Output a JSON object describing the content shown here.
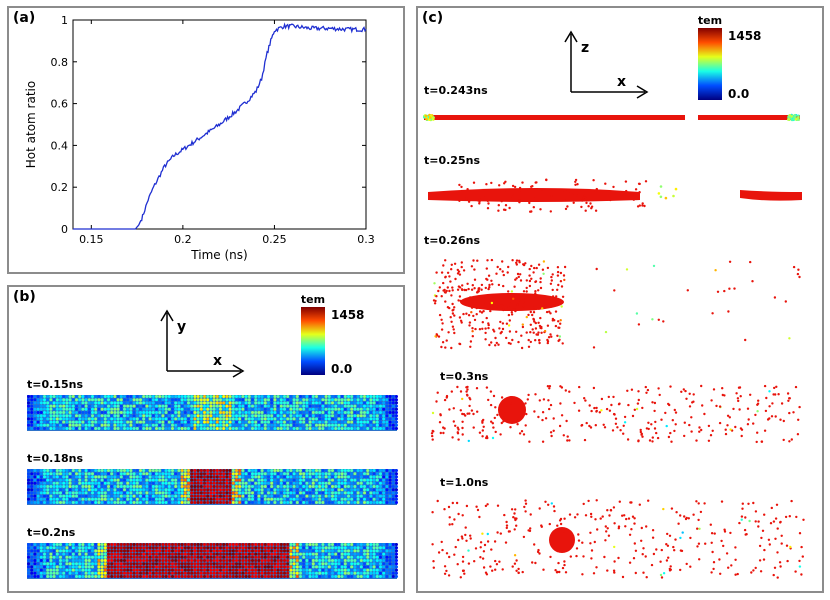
{
  "chart_data": [
    {
      "panel": "(a)",
      "type": "line",
      "xlabel": "Time (ns)",
      "ylabel": "Hot atom ratio",
      "xlim": [
        0.14,
        0.3
      ],
      "ylim": [
        0,
        1
      ],
      "xticks": [
        "0.15",
        "0.2",
        "0.25",
        "0.3"
      ],
      "yticks": [
        "0",
        "0.2",
        "0.4",
        "0.6",
        "0.8",
        "1"
      ],
      "series": [
        {
          "name": "Hot atom ratio",
          "color": "#1f2fd1",
          "x": [
            0.14,
            0.174,
            0.176,
            0.178,
            0.181,
            0.184,
            0.187,
            0.19,
            0.195,
            0.2,
            0.21,
            0.22,
            0.23,
            0.236,
            0.24,
            0.243,
            0.246,
            0.248,
            0.25,
            0.255,
            0.26,
            0.27,
            0.28,
            0.29,
            0.3
          ],
          "y": [
            0.0,
            0.0,
            0.02,
            0.06,
            0.14,
            0.2,
            0.25,
            0.3,
            0.35,
            0.38,
            0.44,
            0.5,
            0.57,
            0.62,
            0.66,
            0.72,
            0.84,
            0.9,
            0.95,
            0.97,
            0.97,
            0.96,
            0.96,
            0.955,
            0.955
          ]
        }
      ]
    },
    {
      "panel": "(b)",
      "type": "heatmap",
      "axes": {
        "vertical": "y",
        "horizontal": "x"
      },
      "colorbar": {
        "title": "tem",
        "max": "1458",
        "min": "0.0"
      },
      "snapshots": [
        {
          "time": "t=0.15ns",
          "hot_region": [
            0.45,
            0.55
          ],
          "hot_level": 0.45
        },
        {
          "time": "t=0.18ns",
          "hot_region": [
            0.44,
            0.55
          ],
          "hot_level": 1.0
        },
        {
          "time": "t=0.2ns",
          "hot_region": [
            0.22,
            0.71
          ],
          "hot_level": 1.0
        }
      ]
    },
    {
      "panel": "(c)",
      "type": "scatter",
      "axes": {
        "vertical": "z",
        "horizontal": "x"
      },
      "colorbar": {
        "title": "tem",
        "max": "1458",
        "min": "0.0"
      },
      "snapshots": [
        {
          "time": "t=0.243ns"
        },
        {
          "time": "t=0.25ns"
        },
        {
          "time": "t=0.26ns"
        },
        {
          "time": "t=0.3ns"
        },
        {
          "time": "t=1.0ns"
        }
      ]
    }
  ]
}
